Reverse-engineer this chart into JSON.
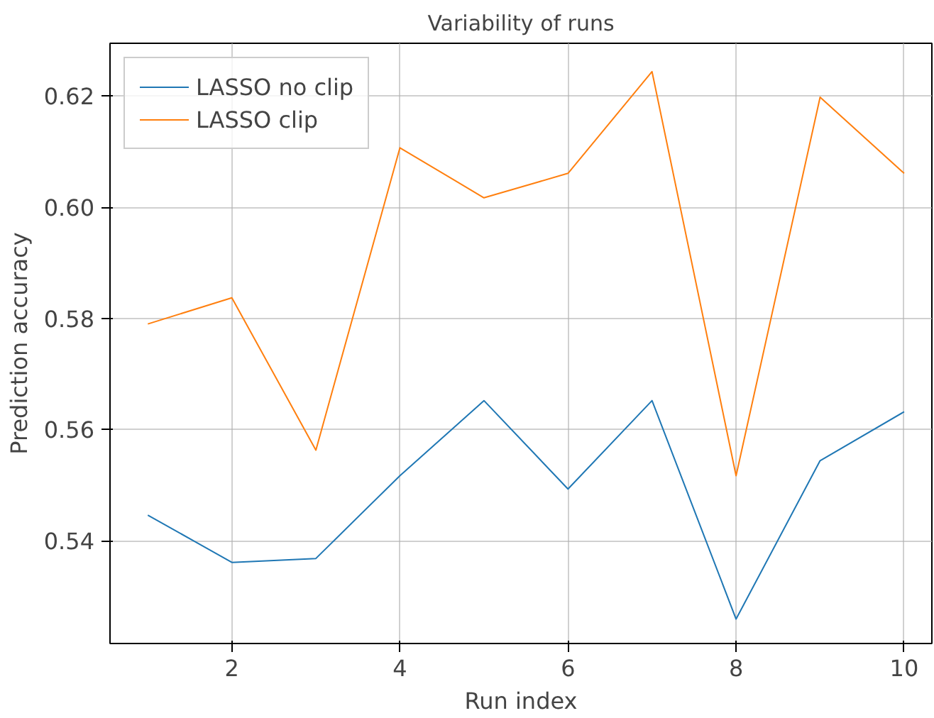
{
  "chart_data": {
    "type": "line",
    "title": "Variability of runs",
    "xlabel": "Run index",
    "ylabel": "Prediction accuracy",
    "x": [
      1,
      2,
      3,
      4,
      5,
      6,
      7,
      8,
      9,
      10
    ],
    "series": [
      {
        "name": "LASSO no clip",
        "color": "#1f77b4",
        "values": [
          0.5446,
          0.5361,
          0.5368,
          0.5517,
          0.5652,
          0.5493,
          0.5652,
          0.5259,
          0.5544,
          0.5632
        ]
      },
      {
        "name": "LASSO clip",
        "color": "#ff7f0e",
        "values": [
          0.579,
          0.5837,
          0.5563,
          0.6107,
          0.6017,
          0.6061,
          0.6244,
          0.5517,
          0.6198,
          0.6061
        ]
      }
    ],
    "xlim": [
      0.55,
      10.33
    ],
    "ylim": [
      0.5215,
      0.6295
    ],
    "xticks": [
      2,
      4,
      6,
      8,
      10
    ],
    "yticks": [
      {
        "value": 0.54,
        "label": "0.54"
      },
      {
        "value": 0.56,
        "label": "0.56"
      },
      {
        "value": 0.58,
        "label": "0.58"
      },
      {
        "value": 0.6,
        "label": "0.60"
      },
      {
        "value": 0.62,
        "label": "0.62"
      }
    ],
    "grid": true,
    "legend": "top left",
    "marker": "none",
    "line_style": "solid"
  }
}
